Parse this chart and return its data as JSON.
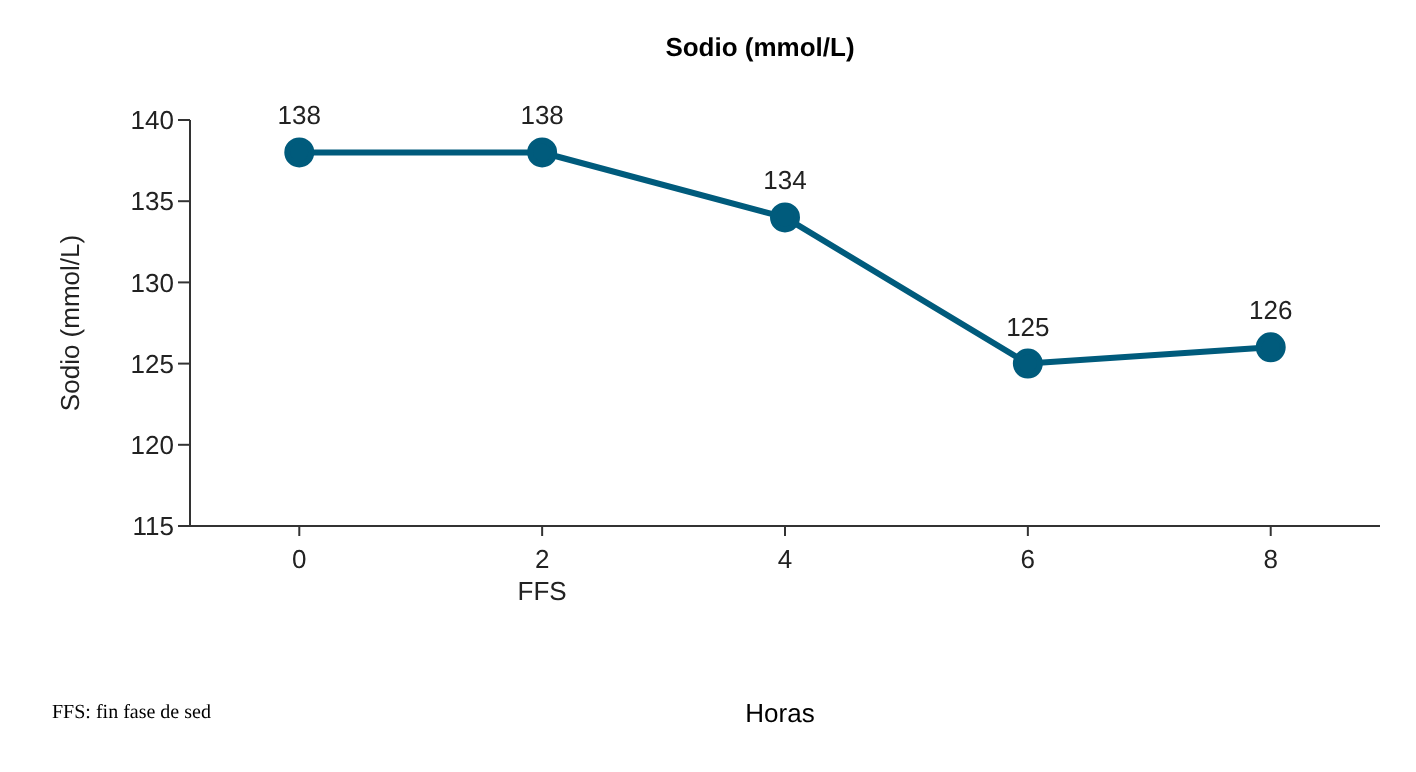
{
  "chart_data": {
    "type": "line",
    "title": "Sodio (mmol/L)",
    "xlabel": "Horas",
    "ylabel": "Sodio (mmol/L)",
    "x": [
      0,
      2,
      4,
      6,
      8
    ],
    "series": [
      {
        "color": "#005b7c",
        "values": [
          138,
          138,
          134,
          125,
          126
        ]
      }
    ],
    "xlim": [
      -0.9,
      8.9
    ],
    "xticks": [
      0,
      {
        "value": 2,
        "label": "2\nFFS"
      },
      4,
      6,
      8
    ],
    "ylim": [
      115,
      140
    ],
    "yticks": [
      115,
      120,
      125,
      130,
      135,
      140
    ],
    "grid": false,
    "legend": false,
    "marker": "circle",
    "line_style": "solid",
    "data_labels": true,
    "annotations": [
      "FFS: fin fase de sed"
    ]
  }
}
